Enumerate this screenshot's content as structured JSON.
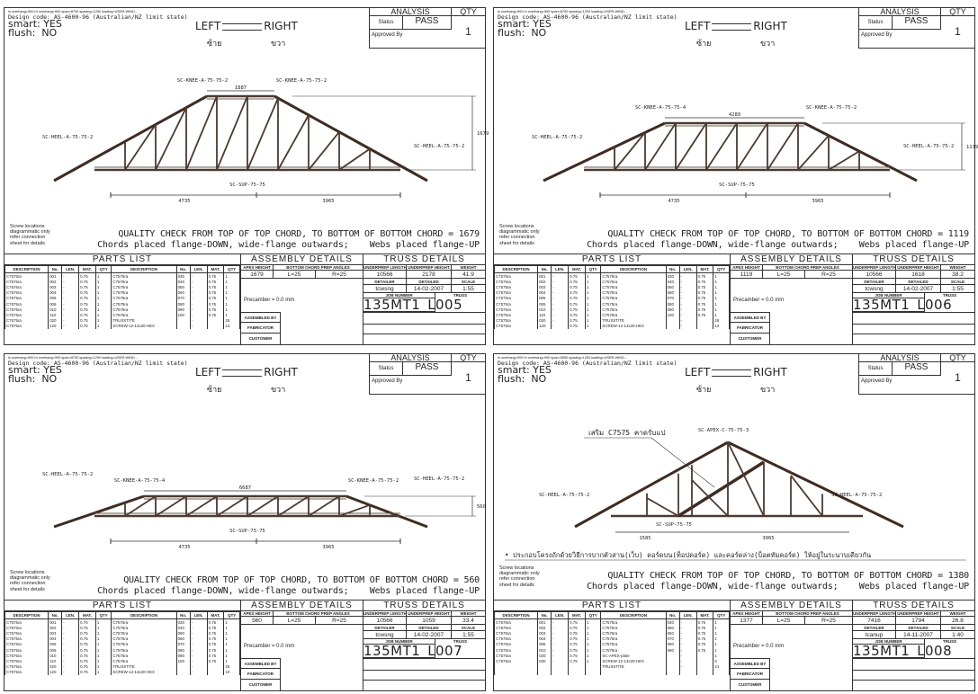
{
  "common": {
    "design_code": "Design code: AS-4600-96 (Australian/NZ limit state)",
    "smart_label": "smart:",
    "smart_value": "YES",
    "flush_label": "flush:",
    "flush_value": "NO",
    "left_label": "LEFT",
    "right_label": "RIGHT",
    "left_thai": "ซ้าย",
    "right_thai": "ขวา",
    "analysis_title": "ANALYSIS",
    "qty_title": "QTY",
    "status_label": "Status",
    "status_value": "PASS",
    "approved_label": "Approved By",
    "qty_value": "1",
    "screw_note": [
      "Screw locations",
      "diagrammatic only",
      "refer connection",
      "sheet for details"
    ],
    "chords_note": "Chords placed flange-DOWN, wide-flange outwards;",
    "webs_note": "Webs placed flange-UP",
    "parts_title": "PARTS LIST",
    "parts_headers": [
      "DESCRIPTION",
      "No.",
      "LEN.",
      "MAT.",
      "QTY",
      "DESCRIPTION",
      "No.",
      "LEN.",
      "MAT.",
      "QTY"
    ],
    "assembly_title": "ASSEMBLY DETAILS",
    "apex_height_label": "APEX HEIGHT",
    "bc_prep_label": "BOTTOM CHORD PREP ANGLES",
    "precamber": "Precamber = 0.0 mm",
    "assembled_by": "ASSEMBLED BY",
    "fabricator": "FABRICATOR",
    "customer": "CUSTOMER",
    "truss_title": "TRUSS DETAILS",
    "length_label": "UNDERPREP LENGTH",
    "height_label": "UNDERPREP HEIGHT",
    "weight_label": "WEIGHT",
    "detailer_label": "DETAILER",
    "detailed_label": "DETAILED",
    "scale_label": "SCALE",
    "job_label": "JOB NUMBER",
    "truss_label": "TRUSS",
    "sup_label": "SC-SUP-75-75",
    "heel_label": "SC-HEEL-A-75-75-2"
  },
  "sheets": [
    {
      "topline": "in overhang=900 rh overhang=900 span=8700 spacing=1200 loading=USER-WIND...",
      "knee_left": "SC-KNEE-A-75-75-2",
      "knee_right": "SC-KNEE-A-75-75-2",
      "top_width": "1887",
      "height_dim": "1679",
      "dim_left": "4735",
      "dim_right": "3965",
      "quality_check": "QUALITY CHECK FROM TOP OF TOP CHORD, TO BOTTOM OF BOTTOM CHORD = 1679",
      "parts_left": [
        [
          "C7575ra",
          "001",
          "-",
          "0.75",
          "1"
        ],
        [
          "C7575ra",
          "002",
          "-",
          "0.75",
          "1"
        ],
        [
          "C7575ra",
          "003",
          "-",
          "0.75",
          "1"
        ],
        [
          "C7575ra",
          "004",
          "-",
          "0.75",
          "1"
        ],
        [
          "C7575ra",
          "005",
          "-",
          "0.75",
          "1"
        ],
        [
          "C7575ra",
          "006",
          "-",
          "0.75",
          "1"
        ],
        [
          "C7575ra",
          "010",
          "-",
          "0.75",
          "1"
        ],
        [
          "C7575ra",
          "110",
          "-",
          "0.75",
          "1"
        ],
        [
          "C7575ra",
          "020",
          "-",
          "0.75",
          "1"
        ],
        [
          "C7575ra",
          "120",
          "-",
          "0.75",
          "1"
        ]
      ],
      "parts_right": [
        [
          "C7575ra",
          "030",
          "-",
          "0.75",
          "1"
        ],
        [
          "C7575ra",
          "040",
          "-",
          "0.75",
          "1"
        ],
        [
          "C7575ra",
          "050",
          "-",
          "0.75",
          "1"
        ],
        [
          "C7575ra",
          "060",
          "-",
          "0.75",
          "1"
        ],
        [
          "C7575ra",
          "070",
          "-",
          "0.75",
          "1"
        ],
        [
          "C7575ra",
          "080",
          "-",
          "0.75",
          "1"
        ],
        [
          "C7575ra",
          "090",
          "-",
          "0.75",
          "1"
        ],
        [
          "C7575ra",
          "100",
          "-",
          "0.75",
          "1"
        ],
        [
          "TRUSSTITE",
          "",
          "-",
          "",
          "26"
        ],
        [
          "SCREW-12-14x20-HEX",
          "",
          "-",
          "",
          "12"
        ]
      ],
      "apex_height": "1679",
      "bc_left": "L=25",
      "bc_right": "R=25",
      "length": "10566",
      "height": "2178",
      "weight": "41.9",
      "detailer": "tcwsng",
      "detailed": "14-02-2007",
      "scale": "1:55",
      "job_number": "135MT1_L",
      "truss": "005"
    },
    {
      "topline": "in overhang=900 rh overhang=900 span=8700 spacing=1200 loading=USER-WIND...",
      "knee_left": "SC-KNEE-A-75-75-4",
      "knee_right": "SC-KNEE-A-75-75-2",
      "top_width": "4289",
      "height_dim": "1119",
      "dim_left": "4735",
      "dim_right": "3965",
      "quality_check": "QUALITY CHECK FROM TOP OF TOP CHORD, TO BOTTOM OF BOTTOM CHORD = 1119",
      "parts_left": [
        [
          "C7575ra",
          "001",
          "-",
          "0.75",
          "1"
        ],
        [
          "C7575ra",
          "002",
          "-",
          "0.75",
          "1"
        ],
        [
          "C7575ra",
          "003",
          "-",
          "0.75",
          "1"
        ],
        [
          "C7575ra",
          "004",
          "-",
          "0.75",
          "1"
        ],
        [
          "C7575ra",
          "005",
          "-",
          "0.75",
          "1"
        ],
        [
          "C7575ra",
          "006",
          "-",
          "0.75",
          "1"
        ],
        [
          "C7575ra",
          "010",
          "-",
          "0.75",
          "1"
        ],
        [
          "C7575ra",
          "110",
          "-",
          "0.75",
          "1"
        ],
        [
          "C7575ra",
          "020",
          "-",
          "0.75",
          "1"
        ],
        [
          "C7575ra",
          "120",
          "-",
          "0.75",
          "1"
        ]
      ],
      "parts_right": [
        [
          "C7575ra",
          "030",
          "-",
          "0.75",
          "1"
        ],
        [
          "C7575ra",
          "040",
          "-",
          "0.75",
          "1"
        ],
        [
          "C7575ra",
          "050",
          "-",
          "0.75",
          "1"
        ],
        [
          "C7575ra",
          "060",
          "-",
          "0.75",
          "1"
        ],
        [
          "C7575ra",
          "070",
          "-",
          "0.75",
          "1"
        ],
        [
          "C7575ra",
          "080",
          "-",
          "0.75",
          "1"
        ],
        [
          "C7575ra",
          "090",
          "-",
          "0.75",
          "1"
        ],
        [
          "C7575ra",
          "100",
          "-",
          "0.75",
          "1"
        ],
        [
          "TRUSSTITE",
          "",
          "-",
          "",
          "26"
        ],
        [
          "SCREW-12-14x20-HEX",
          "",
          "-",
          "",
          "12"
        ]
      ],
      "apex_height": "1119",
      "bc_left": "L=25",
      "bc_right": "R=25",
      "length": "10566",
      "height": "1618",
      "weight": "38.2",
      "detailer": "tcwsng",
      "detailed": "14-02-2007",
      "scale": "1:55",
      "job_number": "135MT1_L",
      "truss": "006"
    },
    {
      "topline": "in overhang=900 rh overhang=900 span=8700 spacing=1200 loading=USER-WIND...",
      "knee_left": "SC-KNEE-A-75-75-4",
      "knee_right": "SC-KNEE-A-75-75-2",
      "top_width": "6687",
      "height_dim": "560",
      "dim_left": "4735",
      "dim_right": "3965",
      "quality_check": "QUALITY CHECK FROM TOP OF TOP CHORD, TO BOTTOM OF BOTTOM CHORD = 560",
      "parts_left": [
        [
          "C7575ra",
          "001",
          "-",
          "0.75",
          "1"
        ],
        [
          "C7575ra",
          "002",
          "-",
          "0.75",
          "1"
        ],
        [
          "C7575ra",
          "003",
          "-",
          "0.75",
          "1"
        ],
        [
          "C7575ra",
          "004",
          "-",
          "0.75",
          "1"
        ],
        [
          "C7575ra",
          "005",
          "-",
          "0.75",
          "1"
        ],
        [
          "C7575ra",
          "006",
          "-",
          "0.75",
          "1"
        ],
        [
          "C7575ra",
          "010",
          "-",
          "0.75",
          "1"
        ],
        [
          "C7575ra",
          "110",
          "-",
          "0.75",
          "1"
        ],
        [
          "C7575ra",
          "020",
          "-",
          "0.75",
          "1"
        ],
        [
          "C7575ra",
          "120",
          "-",
          "0.75",
          "1"
        ]
      ],
      "parts_right": [
        [
          "C7575ra",
          "030",
          "-",
          "0.75",
          "1"
        ],
        [
          "C7575ra",
          "040",
          "-",
          "0.75",
          "1"
        ],
        [
          "C7575ra",
          "050",
          "-",
          "0.75",
          "1"
        ],
        [
          "C7575ra",
          "060",
          "-",
          "0.75",
          "1"
        ],
        [
          "C7575ra",
          "070",
          "-",
          "0.75",
          "1"
        ],
        [
          "C7575ra",
          "080",
          "-",
          "0.75",
          "1"
        ],
        [
          "C7575ra",
          "090",
          "-",
          "0.75",
          "1"
        ],
        [
          "C7575ra",
          "100",
          "-",
          "0.75",
          "1"
        ],
        [
          "TRUSSTITE",
          "",
          "-",
          "",
          "26"
        ],
        [
          "SCREW-12-14x20-HEX",
          "",
          "-",
          "",
          "10"
        ]
      ],
      "apex_height": "560",
      "bc_left": "L=25",
      "bc_right": "R=25",
      "length": "10566",
      "height": "1059",
      "weight": "33.4",
      "detailer": "tcwsng",
      "detailed": "14-02-2007",
      "scale": "1:55",
      "job_number": "135MT1_L",
      "truss": "007"
    },
    {
      "topline": "in overhang=900 rh overhang=900 span=5550 spacing=1200 loading=USER-WIND...",
      "apex_label": "SC-APEX-C-75-75-3",
      "note_thai": "เสริม C7575 คาดรับแป",
      "bottom_note_thai": "• ประกอบโครงถักด้วยวิธีการบากตัวสาน(เว็บ) คอร์ดบน(ท็อปคอร์ด) และคอร์ดล่าง(บ็อตทัมคอร์ด) ให้อยู่ในระนาบเดียวกัน",
      "dim_left": "1585",
      "dim_right": "3965",
      "quality_check": "QUALITY CHECK FROM TOP OF TOP CHORD, TO BOTTOM OF BOTTOM CHORD = 1380",
      "parts_left": [
        [
          "C7575ra",
          "001",
          "-",
          "0.75",
          "1"
        ],
        [
          "C7575ra",
          "002",
          "-",
          "0.75",
          "1"
        ],
        [
          "C7575ra",
          "003",
          "-",
          "0.75",
          "1"
        ],
        [
          "C7575ra",
          "004",
          "-",
          "0.75",
          "1"
        ],
        [
          "C7575ra",
          "005",
          "-",
          "0.75",
          "1"
        ],
        [
          "C7575ra",
          "010",
          "-",
          "0.75",
          "1"
        ],
        [
          "C7575ra",
          "020",
          "-",
          "0.75",
          "1"
        ],
        [
          "C7575ra",
          "030",
          "-",
          "0.75",
          "1"
        ],
        [
          "",
          "",
          "",
          "",
          ""
        ],
        [
          "",
          "",
          "",
          "",
          ""
        ]
      ],
      "parts_right": [
        [
          "C7575ra",
          "040",
          "-",
          "0.75",
          "1"
        ],
        [
          "C7575ra",
          "050",
          "-",
          "0.75",
          "1"
        ],
        [
          "C7575ra",
          "060",
          "-",
          "0.75",
          "1"
        ],
        [
          "C7575ra",
          "070",
          "-",
          "0.75",
          "1"
        ],
        [
          "C7575ra",
          "080",
          "-",
          "0.75",
          "1"
        ],
        [
          "C7575ra",
          "090",
          "-",
          "0.75",
          "1"
        ],
        [
          "SC-APEX-plate",
          "",
          "-",
          "",
          "1"
        ],
        [
          "SCREW-12-14x20-HEX",
          "",
          "-",
          "",
          "6"
        ],
        [
          "TRUSSTITE",
          "",
          "-",
          "",
          "21"
        ],
        [
          "",
          "",
          "",
          "",
          ""
        ]
      ],
      "apex_height": "1377",
      "bc_left": "L=25",
      "bc_right": "R=25",
      "length": "7416",
      "height": "1794",
      "weight": "26.8",
      "detailer": "tcanup",
      "detailed": "14-11-2007",
      "scale": "1:40",
      "job_number": "135MT1_L",
      "truss": "008"
    }
  ]
}
